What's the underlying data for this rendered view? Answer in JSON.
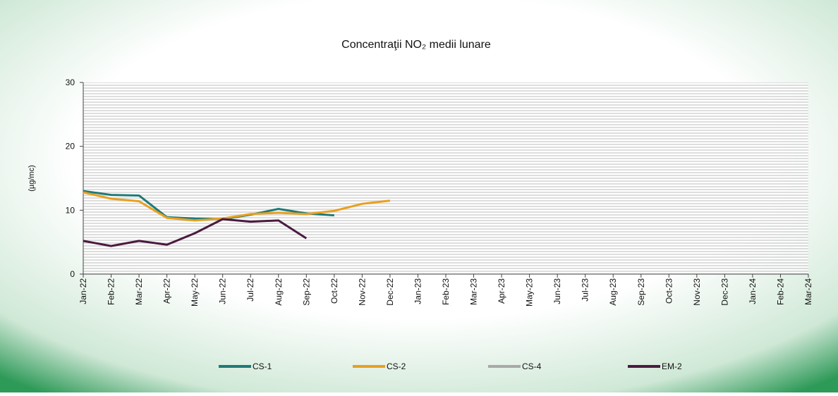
{
  "chart_data": {
    "type": "line",
    "title": "Concentraţii NO₂ medii lunare",
    "y_label": "(µg/mc)",
    "categories": [
      "Jan-22",
      "Feb-22",
      "Mar-22",
      "Apr-22",
      "May-22",
      "Jun-22",
      "Jul-22",
      "Aug-22",
      "Sep-22",
      "Oct-22",
      "Nov-22",
      "Dec-22",
      "Jan-23",
      "Feb-23",
      "Mar-23",
      "Apr-23",
      "May-23",
      "Jun-23",
      "Jul-23",
      "Aug-23",
      "Sep-23",
      "Oct-23",
      "Nov-23",
      "Dec-23",
      "Jan-24",
      "Feb-24",
      "Mar-24"
    ],
    "series": [
      {
        "name": "CS-1",
        "color": "#1e7a78",
        "values": [
          13.0,
          12.4,
          12.3,
          8.9,
          8.7,
          8.6,
          9.3,
          10.2,
          9.5,
          9.2,
          null,
          null,
          null,
          null,
          null,
          null,
          null,
          null,
          null,
          null,
          null,
          null,
          null,
          null,
          null,
          null,
          null
        ]
      },
      {
        "name": "CS-2",
        "color": "#e8a020",
        "values": [
          12.8,
          11.8,
          11.4,
          8.8,
          8.4,
          8.7,
          9.4,
          9.6,
          9.4,
          9.9,
          11.0,
          11.5,
          null,
          null,
          null,
          null,
          null,
          null,
          null,
          null,
          null,
          null,
          null,
          null,
          null,
          null,
          null
        ]
      },
      {
        "name": "CS-4",
        "color": "#a8a8a8",
        "values": [
          null,
          null,
          null,
          null,
          null,
          null,
          null,
          null,
          null,
          null,
          null,
          null,
          null,
          null,
          null,
          null,
          null,
          null,
          null,
          null,
          null,
          null,
          null,
          null,
          null,
          null,
          null
        ]
      },
      {
        "name": "EM-2",
        "color": "#4a1a40",
        "values": [
          5.2,
          4.4,
          5.2,
          4.6,
          6.4,
          8.6,
          8.2,
          8.4,
          5.6,
          null,
          null,
          null,
          null,
          null,
          null,
          null,
          null,
          null,
          null,
          null,
          null,
          null,
          null,
          null,
          null,
          null,
          null
        ]
      }
    ],
    "ylim": [
      0,
      30
    ],
    "yticks": [
      0,
      10,
      20,
      30
    ],
    "legend": "bottom"
  }
}
